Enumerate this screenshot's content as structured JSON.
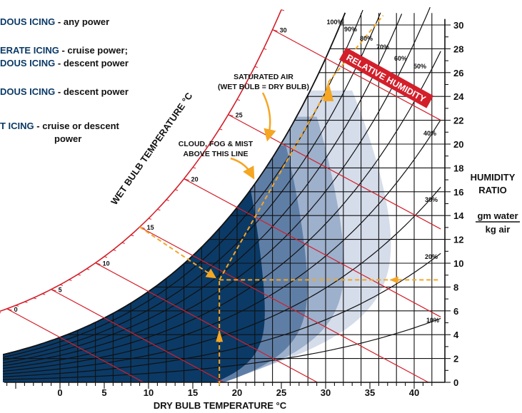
{
  "chart_data": {
    "type": "line",
    "title": "",
    "xlabel": "DRY BULB TEMPERATURE °C",
    "ylabel_lines": [
      "HUMIDITY",
      "RATIO"
    ],
    "y_unit_num": "gm water",
    "y_unit_den": "kg air",
    "xlim": [
      -7,
      43
    ],
    "ylim": [
      0,
      31
    ],
    "x_ticks": [
      0,
      5,
      10,
      15,
      20,
      25,
      30,
      35,
      40
    ],
    "y_ticks": [
      0,
      2,
      4,
      6,
      8,
      10,
      12,
      14,
      16,
      18,
      20,
      22,
      24,
      26,
      28,
      30
    ],
    "wet_bulb_axis_label": "WET BULB TEMPERATURE °C",
    "wet_bulb_ticks": [
      0,
      5,
      10,
      15,
      20,
      25,
      30
    ],
    "relative_humidity_banner": "RELATIVE HUMIDITY",
    "rh_labels": [
      "10%",
      "20%",
      "30%",
      "40%",
      "50%",
      "60%",
      "70%",
      "80%",
      "90%",
      "100%"
    ],
    "rh_values": [
      10,
      20,
      30,
      40,
      50,
      60,
      70,
      80,
      90,
      100
    ],
    "annotations": {
      "saturated_line1": "SATURATED AIR",
      "saturated_line2": "(WET BULB = DRY BULB)",
      "cloud_line1": "CLOUD, FOG & MIST",
      "cloud_line2": "ABOVE THIS LINE"
    },
    "legend": [
      {
        "highlight": "DOUS ICING",
        "text": " - any power"
      },
      {
        "highlight": "ERATE ICING",
        "text": " - cruise power;"
      },
      {
        "highlight": "DOUS ICING",
        "text": " - descent power"
      },
      {
        "highlight": "DOUS ICING",
        "text": " - descent power"
      },
      {
        "highlight": "T ICING",
        "text": " - cruise or descent"
      },
      {
        "highlight": "",
        "text": "power"
      }
    ],
    "example": {
      "dry_bulb": 18,
      "wet_bulb": 15,
      "humidity_ratio": 8.6,
      "relative_humidity": 72
    },
    "colors": {
      "dark_region": "#0b3a66",
      "mid_region": "#5f7ea6",
      "light_region": "#9db0cc",
      "lightest_region": "#d5dcea",
      "wet_bulb_lines": "#d31f2a",
      "guide_arrows": "#f5a623",
      "banner_fill": "#d31f2a"
    }
  }
}
